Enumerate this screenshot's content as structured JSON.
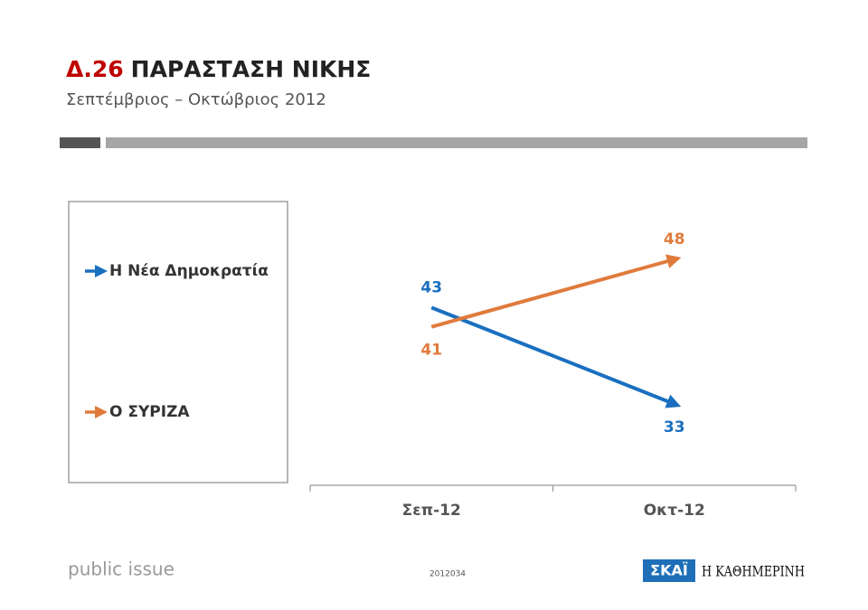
{
  "chart_data": {
    "type": "line",
    "title_code": "Δ.26",
    "title": "ΠΑΡΑΣΤΑΣΗ ΝΙΚΗΣ",
    "subtitle": "Σεπτέμβριος – Οκτώβριος 2012",
    "categories": [
      "Σεπ-12",
      "Οκτ-12"
    ],
    "series": [
      {
        "name": "Η Νέα Δημοκρατία",
        "color": "#1a6fc0",
        "values": [
          43,
          33
        ]
      },
      {
        "name": "Ο ΣΥΡΙΖΑ",
        "color": "#e07b3c",
        "values": [
          41,
          48
        ]
      }
    ]
  },
  "footer": {
    "brand": "public issue",
    "code": "2012034",
    "logo_tv": "ΣΚΑΪ",
    "logo_paper": "Η ΚΑΘΗΜΕΡΙΝΗ"
  }
}
